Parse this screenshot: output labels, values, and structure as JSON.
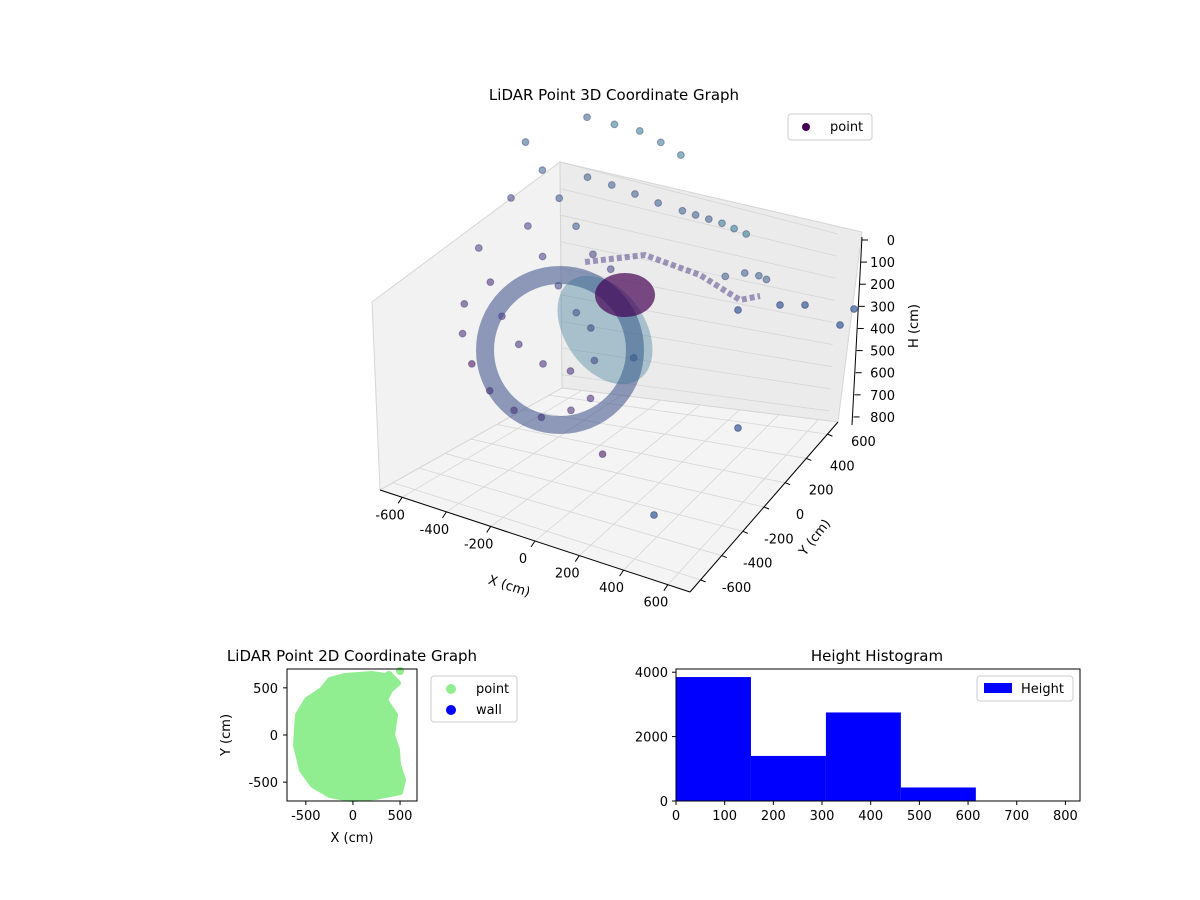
{
  "chart_data": [
    {
      "type": "scatter",
      "projection": "3d",
      "title": "LiDAR Point 3D Coordinate Graph",
      "xlabel": "X (cm)",
      "ylabel": "Y (cm)",
      "zlabel": "H (cm)",
      "xlim": [
        -700,
        700
      ],
      "ylim": [
        -700,
        700
      ],
      "zlim": [
        0,
        850
      ],
      "zaxis_inverted": true,
      "x_ticks": [
        -600,
        -400,
        -200,
        0,
        200,
        400,
        600
      ],
      "y_ticks": [
        -600,
        -400,
        -200,
        0,
        200,
        400,
        600
      ],
      "z_ticks": [
        0,
        100,
        200,
        300,
        400,
        500,
        600,
        700,
        800
      ],
      "colormap": "viridis",
      "legend": {
        "entries": [
          "point"
        ],
        "placement": "top-right"
      },
      "series": [
        {
          "name": "point",
          "color": "#440154",
          "x": [
            -420,
            -380,
            -300,
            -200,
            -100,
            0,
            100,
            150,
            -450,
            -350,
            -250,
            -150,
            -50,
            50,
            120,
            -400,
            -300,
            -200,
            -100,
            0,
            80,
            -430,
            -330,
            -230,
            -130,
            -30,
            60,
            -200,
            -100,
            0,
            100,
            200,
            -150,
            -50,
            50,
            150,
            250,
            300,
            350,
            400,
            450,
            500,
            520,
            560,
            600,
            620,
            250,
            300
          ],
          "y": [
            -300,
            -400,
            -480,
            -520,
            -500,
            -450,
            -380,
            -300,
            -100,
            -200,
            -300,
            -350,
            -330,
            -280,
            -200,
            100,
            50,
            -20,
            -80,
            -120,
            -150,
            300,
            250,
            200,
            150,
            100,
            80,
            400,
            450,
            480,
            470,
            450,
            300,
            320,
            330,
            340,
            360,
            380,
            400,
            420,
            430,
            440,
            200,
            300,
            350,
            380,
            -100,
            -500
          ],
          "z": [
            500,
            550,
            600,
            650,
            700,
            720,
            700,
            680,
            400,
            450,
            500,
            550,
            600,
            620,
            600,
            300,
            350,
            400,
            450,
            500,
            520,
            200,
            250,
            300,
            350,
            400,
            420,
            100,
            120,
            130,
            140,
            150,
            250,
            260,
            270,
            280,
            290,
            300,
            310,
            320,
            330,
            340,
            380,
            400,
            420,
            440,
            600,
            750
          ]
        }
      ]
    },
    {
      "type": "scatter",
      "title": "LiDAR Point 2D Coordinate Graph",
      "xlabel": "X (cm)",
      "ylabel": "Y (cm)",
      "xlim": [
        -700,
        680
      ],
      "ylim": [
        -700,
        700
      ],
      "x_ticks": [
        -500,
        0,
        500
      ],
      "y_ticks": [
        -500,
        0,
        500
      ],
      "legend": {
        "entries": [
          "point",
          "wall"
        ],
        "placement": "outside-right"
      },
      "series": [
        {
          "name": "point",
          "color": "#90ee90",
          "shape": "filled-disc",
          "x": [
            -500,
            500
          ],
          "y": [
            -650,
            650
          ]
        },
        {
          "name": "wall",
          "color": "#0000ff",
          "x": [],
          "y": []
        }
      ]
    },
    {
      "type": "bar",
      "subtype": "histogram",
      "title": "Height Histogram",
      "xlim": [
        0,
        830
      ],
      "ylim": [
        0,
        4100
      ],
      "x_ticks": [
        0,
        100,
        200,
        300,
        400,
        500,
        600,
        700,
        800
      ],
      "y_ticks": [
        0,
        2000,
        4000
      ],
      "bin_edges": [
        0,
        154,
        308,
        462,
        616
      ],
      "values": [
        3850,
        1400,
        2750,
        420
      ],
      "color": "#0000ff",
      "legend": {
        "entries": [
          "Height"
        ],
        "placement": "top-right"
      }
    }
  ]
}
